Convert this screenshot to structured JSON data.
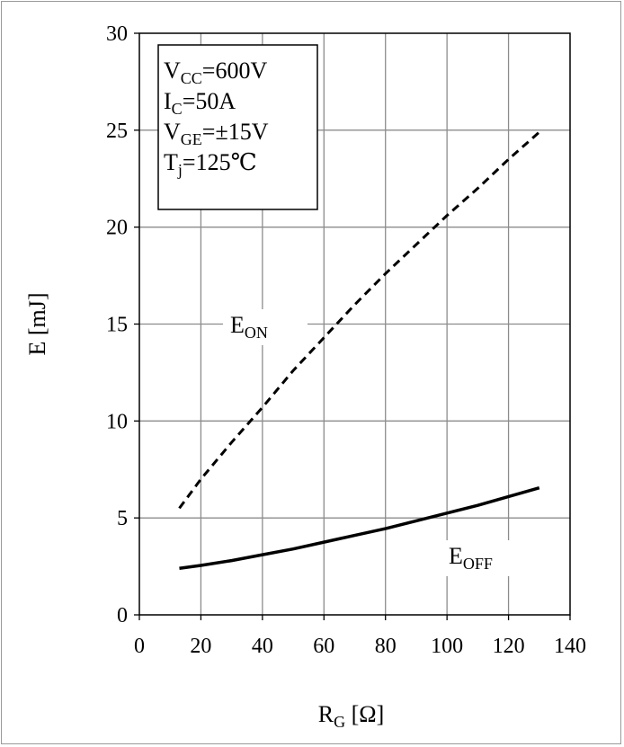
{
  "chart_data": {
    "type": "line",
    "xlabel": {
      "main": "R",
      "sub": "G",
      "rest": " [Ω]"
    },
    "ylabel": "E [mJ]",
    "xlim": [
      0,
      140
    ],
    "ylim": [
      0,
      30
    ],
    "xticks": [
      0,
      20,
      40,
      60,
      80,
      100,
      120,
      140
    ],
    "yticks": [
      0,
      5,
      10,
      15,
      20,
      25,
      30
    ],
    "grid": true,
    "conditions": [
      {
        "main": "V",
        "sub": "CC",
        "rest": "=600V"
      },
      {
        "main": "I",
        "sub": "C",
        "rest": "=50A"
      },
      {
        "main": "V",
        "sub": "GE",
        "rest": "=±15V"
      },
      {
        "main": "T",
        "sub": "j",
        "rest": "=125℃"
      }
    ],
    "series": [
      {
        "name": "E_ON",
        "label": {
          "main": "E",
          "sub": "ON"
        },
        "style": "dashed",
        "x": [
          13,
          20,
          30,
          40,
          50,
          60,
          70,
          80,
          90,
          100,
          110,
          120,
          130
        ],
        "y": [
          5.5,
          7.0,
          8.9,
          10.7,
          12.6,
          14.3,
          16.0,
          17.6,
          19.1,
          20.6,
          22.0,
          23.5,
          24.9
        ]
      },
      {
        "name": "E_OFF",
        "label": {
          "main": "E",
          "sub": "OFF"
        },
        "style": "solid",
        "x": [
          13,
          20,
          30,
          40,
          50,
          60,
          70,
          80,
          90,
          100,
          110,
          120,
          130
        ],
        "y": [
          2.4,
          2.55,
          2.8,
          3.1,
          3.4,
          3.75,
          4.1,
          4.45,
          4.85,
          5.25,
          5.65,
          6.1,
          6.55
        ]
      }
    ]
  }
}
